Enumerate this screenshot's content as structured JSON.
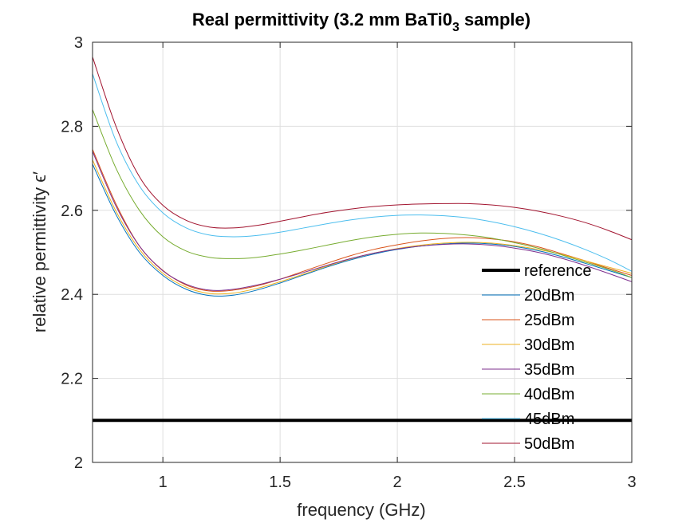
{
  "chart_data": {
    "type": "line",
    "title_parts": {
      "main": "Real permittivity (3.2 mm BaTi0",
      "subscript": "3",
      "suffix": " sample)"
    },
    "xlabel": "frequency (GHz)",
    "ylabel": "relative permittivity ϵ′",
    "xlim": [
      0.7,
      3.0
    ],
    "ylim": [
      2.0,
      3.0
    ],
    "xticks": [
      1,
      1.5,
      2,
      2.5,
      3
    ],
    "xtick_labels": [
      "1",
      "1.5",
      "2",
      "2.5",
      "3"
    ],
    "yticks": [
      2,
      2.2,
      2.4,
      2.6,
      2.8,
      3
    ],
    "ytick_labels": [
      "2",
      "2.2",
      "2.4",
      "2.6",
      "2.8",
      "3"
    ],
    "grid": true,
    "legend_position": "right",
    "x": [
      0.7,
      0.8,
      0.9,
      1.0,
      1.1,
      1.2,
      1.3,
      1.4,
      1.5,
      1.6,
      1.7,
      1.8,
      1.9,
      2.0,
      2.1,
      2.2,
      2.3,
      2.4,
      2.5,
      2.6,
      2.7,
      2.8,
      2.9,
      3.0
    ],
    "series": [
      {
        "name": "reference",
        "color": "#000000",
        "width": 4,
        "values": [
          2.1,
          2.1,
          2.1,
          2.1,
          2.1,
          2.1,
          2.1,
          2.1,
          2.1,
          2.1,
          2.1,
          2.1,
          2.1,
          2.1,
          2.1,
          2.1,
          2.1,
          2.1,
          2.1,
          2.1,
          2.1,
          2.1,
          2.1,
          2.1
        ]
      },
      {
        "name": "20dBm",
        "color": "#0072bd",
        "width": 1,
        "values": [
          2.71,
          2.59,
          2.5,
          2.445,
          2.412,
          2.397,
          2.398,
          2.41,
          2.427,
          2.446,
          2.465,
          2.482,
          2.496,
          2.507,
          2.515,
          2.52,
          2.522,
          2.52,
          2.514,
          2.504,
          2.49,
          2.474,
          2.457,
          2.44
        ]
      },
      {
        "name": "25dBm",
        "color": "#d95319",
        "width": 1,
        "values": [
          2.745,
          2.615,
          2.515,
          2.457,
          2.422,
          2.408,
          2.41,
          2.42,
          2.436,
          2.455,
          2.474,
          2.492,
          2.507,
          2.518,
          2.527,
          2.533,
          2.535,
          2.532,
          2.525,
          2.513,
          2.497,
          2.48,
          2.462,
          2.445
        ]
      },
      {
        "name": "30dBm",
        "color": "#edb120",
        "width": 1,
        "values": [
          2.72,
          2.598,
          2.507,
          2.45,
          2.417,
          2.402,
          2.403,
          2.414,
          2.43,
          2.448,
          2.467,
          2.484,
          2.498,
          2.509,
          2.517,
          2.522,
          2.524,
          2.522,
          2.516,
          2.507,
          2.495,
          2.48,
          2.465,
          2.45
        ]
      },
      {
        "name": "35dBm",
        "color": "#7e2f8e",
        "width": 1,
        "values": [
          2.74,
          2.61,
          2.515,
          2.456,
          2.424,
          2.41,
          2.412,
          2.422,
          2.436,
          2.452,
          2.469,
          2.485,
          2.498,
          2.508,
          2.515,
          2.519,
          2.52,
          2.517,
          2.51,
          2.5,
          2.486,
          2.469,
          2.45,
          2.43
        ]
      },
      {
        "name": "40dBm",
        "color": "#77ac30",
        "width": 1,
        "values": [
          2.84,
          2.7,
          2.6,
          2.537,
          2.503,
          2.488,
          2.485,
          2.488,
          2.496,
          2.506,
          2.517,
          2.528,
          2.537,
          2.543,
          2.546,
          2.545,
          2.541,
          2.534,
          2.523,
          2.51,
          2.494,
          2.477,
          2.46,
          2.44
        ]
      },
      {
        "name": "45dBm",
        "color": "#4dbeee",
        "width": 1,
        "values": [
          2.925,
          2.765,
          2.658,
          2.594,
          2.558,
          2.541,
          2.537,
          2.54,
          2.548,
          2.558,
          2.568,
          2.577,
          2.584,
          2.588,
          2.589,
          2.587,
          2.582,
          2.573,
          2.561,
          2.546,
          2.528,
          2.507,
          2.483,
          2.455
        ]
      },
      {
        "name": "50dBm",
        "color": "#a2142f",
        "width": 1,
        "values": [
          2.965,
          2.8,
          2.68,
          2.612,
          2.576,
          2.56,
          2.558,
          2.564,
          2.574,
          2.585,
          2.595,
          2.603,
          2.609,
          2.613,
          2.615,
          2.616,
          2.616,
          2.613,
          2.607,
          2.598,
          2.586,
          2.571,
          2.552,
          2.53
        ]
      }
    ]
  }
}
